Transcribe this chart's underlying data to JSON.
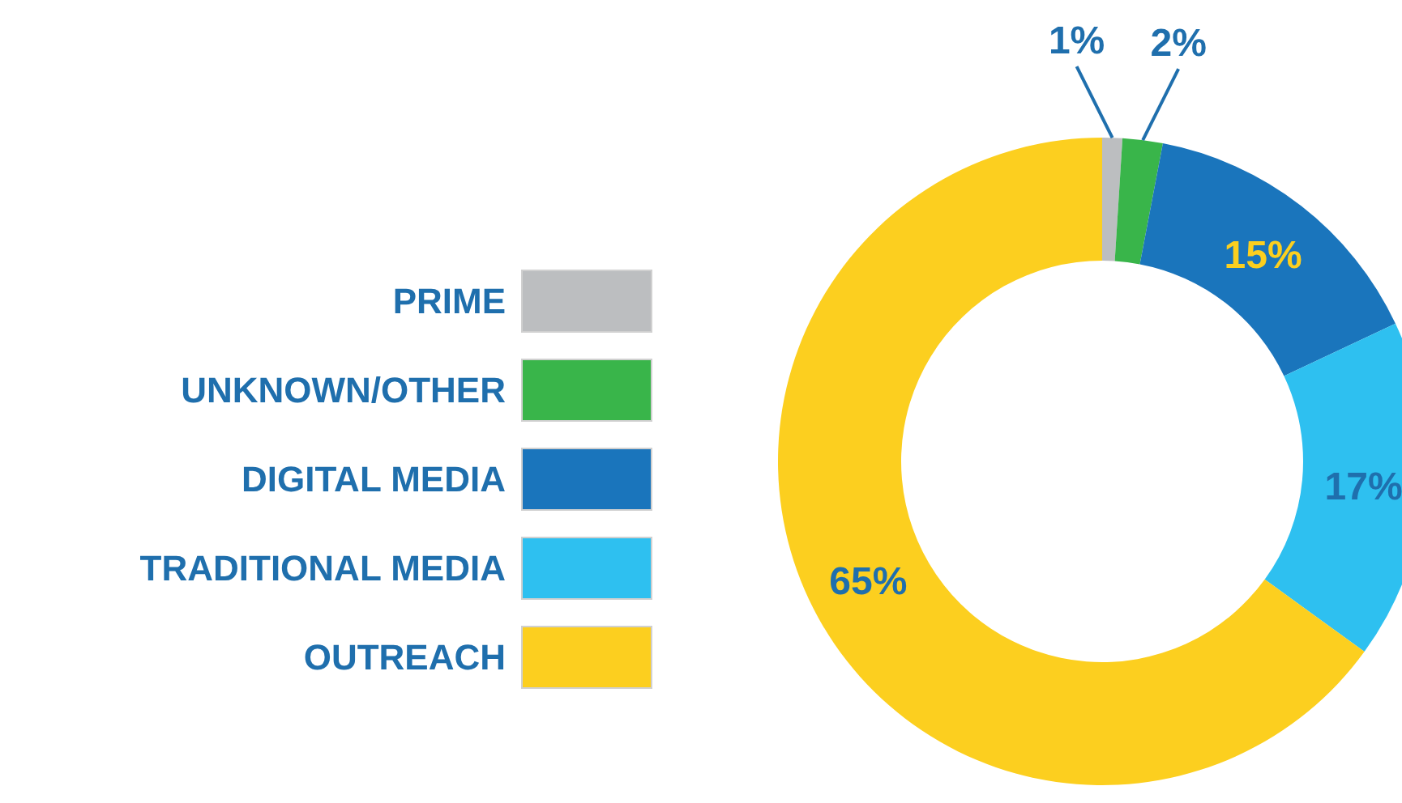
{
  "chart_data": {
    "type": "donut",
    "categories": [
      "PRIME",
      "UNKNOWN/OTHER",
      "DIGITAL MEDIA",
      "TRADITIONAL MEDIA",
      "OUTREACH"
    ],
    "values": [
      1,
      2,
      15,
      17,
      65
    ],
    "colors": [
      "#bcbec0",
      "#39b54a",
      "#1a75bc",
      "#2ec0f0",
      "#fccf1f"
    ],
    "value_labels": [
      "1%",
      "2%",
      "15%",
      "17%",
      "65%"
    ],
    "legend": "left"
  }
}
